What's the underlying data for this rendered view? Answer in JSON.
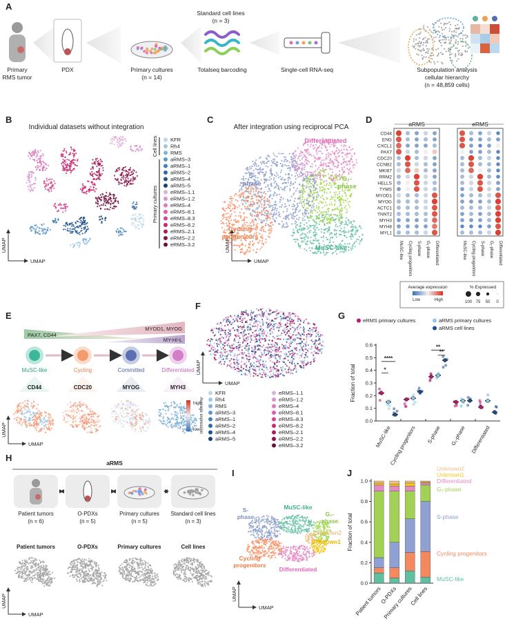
{
  "figure": {
    "panel_letters": [
      "A",
      "B",
      "C",
      "D",
      "E",
      "F",
      "G",
      "H",
      "I",
      "J"
    ],
    "A": {
      "tumor": [
        "Primary",
        "RMS tumor"
      ],
      "pdx": "PDX",
      "primary": [
        "Primary cultures",
        "(n = 14)"
      ],
      "standard": [
        "Standard cell lines",
        "(n = 3)"
      ],
      "barcoding": "Totalseq barcoding",
      "scrnaseq": "Single-cell RNA-seq",
      "analysis": [
        "Subpopulation analysis",
        "cellular hierarchy",
        "(n = 48,859 cells)"
      ]
    },
    "B": {
      "title": "Individual datasets without integration",
      "group_cell_lines": "Cell lines",
      "group_primary": "Primary cultures",
      "umap": "UMAP",
      "samples": [
        {
          "name": "KFR",
          "color": "#b9d6ec"
        },
        {
          "name": "Rh4",
          "color": "#9fc5e4"
        },
        {
          "name": "RMS",
          "color": "#80b1dc"
        },
        {
          "name": "aRMS–3",
          "color": "#5e98cd"
        },
        {
          "name": "aRMS–1",
          "color": "#4281c0"
        },
        {
          "name": "aRMS–2",
          "color": "#2e6bae"
        },
        {
          "name": "aRMS–4",
          "color": "#1f5597"
        },
        {
          "name": "aRMS–5",
          "color": "#17407a"
        },
        {
          "name": "eRMS–1.1",
          "color": "#dcb0da"
        },
        {
          "name": "eRMS–1.2",
          "color": "#d795cf"
        },
        {
          "name": "eRMS–4",
          "color": "#d97cc2"
        },
        {
          "name": "eRMS–8.1",
          "color": "#dd5eb0"
        },
        {
          "name": "eRMS–8.3",
          "color": "#d94391"
        },
        {
          "name": "eRMS–8.2",
          "color": "#c82872"
        },
        {
          "name": "eRMS–2.1",
          "color": "#a91b5b"
        },
        {
          "name": "eRMS–2.2",
          "color": "#8a1349"
        },
        {
          "name": "eRMS–3.2",
          "color": "#6e0c3a"
        }
      ]
    },
    "C": {
      "title": "After integration using reciprocal PCA",
      "umap": "UMAP",
      "differentiated": "Differentiated",
      "sphase": [
        "S-",
        "phase"
      ],
      "g1": [
        "G₁-",
        "phase"
      ],
      "cycling": [
        "Cycling",
        "progenitors"
      ],
      "musc": "MuSC-like"
    },
    "D": {
      "avg_title": "Average expression",
      "low": "Low",
      "high": "High",
      "size_title": "% Expressed",
      "size_ticks": [
        100,
        75,
        50,
        0
      ]
    },
    "E": {
      "pax7": "PAX7, CD44",
      "myod": "MYOD1, MYOG",
      "myh": "MY-H/-L",
      "stages": [
        "MuSC-like",
        "Cycling",
        "Committed",
        "Differentiated"
      ],
      "genes": [
        "CD44",
        "CDC20",
        "MYOG",
        "MYH3"
      ],
      "colorbar_title": "Average expression",
      "high": "high",
      "low": "low",
      "umap": "UMAP"
    },
    "F": {
      "umap": "UMAP"
    },
    "H": {
      "group": "aRMS",
      "boxes": [
        [
          "Patient tumors",
          "(n = 6)"
        ],
        [
          "O-PDXs",
          "(n = 5)"
        ],
        [
          "Primary cultures",
          "(n = 5)"
        ],
        [
          "Standard cell lines",
          "(n = 3)"
        ]
      ],
      "umap_titles": [
        "Patient tumors",
        "O-PDXs",
        "Primary cultures",
        "Cell lines"
      ],
      "umap": "UMAP"
    },
    "I": {
      "sphase": [
        "S-",
        "phase"
      ],
      "musc": "MuSC-like",
      "g1": [
        "G₁-",
        "phase"
      ],
      "unknown2": "Unknown2",
      "unknown1": "Unknown1",
      "cycling": [
        "Cycling",
        "progenitors"
      ],
      "differentiated": "Differentiated",
      "umap": "UMAP"
    }
  },
  "chart_data": [
    {
      "type": "dotplot",
      "groups": [
        "aRMS",
        "eRMS"
      ],
      "genes": [
        "CD44",
        "ENG",
        "CXCL1",
        "PAX7",
        "CDC20",
        "CCNB2",
        "MKI67",
        "RRM2",
        "HELLS",
        "TYMS",
        "MYOD1",
        "MYOG",
        "ACTC1",
        "TNNT2",
        "MYH3",
        "MYH8",
        "MYL1"
      ],
      "clusters": [
        "MuSC-like",
        "Cycling progenitors",
        "S-phase",
        "G₁-phase",
        "Differentiated"
      ],
      "values": [
        [
          0.95,
          0.3,
          0.2,
          0.4,
          0.2,
          0.9,
          0.3,
          0.2,
          0.4,
          0.1
        ],
        [
          0.9,
          0.3,
          0.2,
          0.3,
          0.2,
          0.9,
          0.2,
          0.2,
          0.3,
          0.2
        ],
        [
          0.85,
          0.2,
          0.2,
          0.2,
          0.3,
          0.9,
          0.2,
          0.1,
          0.2,
          0.5
        ],
        [
          0.9,
          0.4,
          0.3,
          0.5,
          0.6,
          0.5,
          0.2,
          0.2,
          0.3,
          0.1
        ],
        [
          0.3,
          0.95,
          0.3,
          0.4,
          0.2,
          0.3,
          0.95,
          0.3,
          0.4,
          0.1
        ],
        [
          0.3,
          0.9,
          0.4,
          0.3,
          0.2,
          0.3,
          0.9,
          0.3,
          0.3,
          0.1
        ],
        [
          0.4,
          0.85,
          0.6,
          0.3,
          0.2,
          0.3,
          0.85,
          0.5,
          0.3,
          0.1
        ],
        [
          0.3,
          0.4,
          0.95,
          0.4,
          0.2,
          0.3,
          0.4,
          0.95,
          0.3,
          0.1
        ],
        [
          0.3,
          0.5,
          0.9,
          0.4,
          0.3,
          0.3,
          0.4,
          0.9,
          0.4,
          0.2
        ],
        [
          0.2,
          0.5,
          0.9,
          0.4,
          0.3,
          0.2,
          0.4,
          0.9,
          0.4,
          0.2
        ],
        [
          0.4,
          0.3,
          0.3,
          0.4,
          0.9,
          0.2,
          0.3,
          0.3,
          0.4,
          0.9
        ],
        [
          0.3,
          0.3,
          0.3,
          0.4,
          0.95,
          0.2,
          0.2,
          0.2,
          0.3,
          0.95
        ],
        [
          0.3,
          0.3,
          0.3,
          0.4,
          0.9,
          0.3,
          0.3,
          0.3,
          0.4,
          0.9
        ],
        [
          0.3,
          0.3,
          0.3,
          0.3,
          0.9,
          0.2,
          0.3,
          0.2,
          0.3,
          0.95
        ],
        [
          0.2,
          0.2,
          0.2,
          0.3,
          0.85,
          0.2,
          0.2,
          0.2,
          0.3,
          0.95
        ],
        [
          0.2,
          0.2,
          0.2,
          0.2,
          0.8,
          0.1,
          0.1,
          0.1,
          0.2,
          0.9
        ],
        [
          0.3,
          0.3,
          0.3,
          0.4,
          0.9,
          0.3,
          0.3,
          0.3,
          0.4,
          0.95
        ]
      ]
    },
    {
      "type": "dot",
      "ylabel": "Fraction of total",
      "categories": [
        "MuSC-like",
        "Cycling progenitors",
        "S-phase",
        "G₁-phase",
        "Differentiated"
      ],
      "series": [
        {
          "name": "eRMS primary cultures",
          "color": "#b8196b",
          "values": [
            0.22,
            0.17,
            0.35,
            0.15,
            0.11
          ]
        },
        {
          "name": "aRMS primary cultures",
          "color": "#8ecae6",
          "values": [
            0.15,
            0.18,
            0.36,
            0.16,
            0.16
          ]
        },
        {
          "name": "aRMS cell lines",
          "color": "#1d4e89",
          "values": [
            0.05,
            0.23,
            0.48,
            0.16,
            0.07
          ]
        }
      ],
      "annotations": [
        "****",
        "*",
        "**",
        "**"
      ],
      "ylim": [
        0,
        0.6
      ],
      "yticks": [
        {
          "value": 0,
          "label": "0.0"
        },
        {
          "value": 0.1,
          "label": "0.1"
        },
        {
          "value": 0.2,
          "label": "0.2"
        },
        {
          "value": 0.3,
          "label": "0.3"
        },
        {
          "value": 0.4,
          "label": "0.4"
        },
        {
          "value": 0.5,
          "label": "0.5"
        },
        {
          "value": 0.6,
          "label": "0.6"
        }
      ]
    },
    {
      "type": "stacked-bar",
      "ylabel": "Fraction of total",
      "categories": [
        "Patient tumors",
        "O-PDXs",
        "Primary cultures",
        "Cell lines"
      ],
      "series": [
        {
          "name": "MuSC-like",
          "color": "#5fbf9f",
          "values": [
            0.1,
            0.05,
            0.12,
            0.06
          ]
        },
        {
          "name": "Cycling progenitors",
          "color": "#f4895f",
          "values": [
            0.05,
            0.1,
            0.18,
            0.25
          ]
        },
        {
          "name": "S-phase",
          "color": "#8fa0d2",
          "values": [
            0.1,
            0.25,
            0.33,
            0.49
          ]
        },
        {
          "name": "G₁-phase",
          "color": "#a3d155",
          "values": [
            0.65,
            0.5,
            0.27,
            0.16
          ]
        },
        {
          "name": "Differentiated",
          "color": "#e48cc6",
          "values": [
            0.06,
            0.05,
            0.05,
            0.02
          ]
        },
        {
          "name": "Unknown1",
          "color": "#f3c81e",
          "values": [
            0.02,
            0.02,
            0.03,
            0.01
          ]
        },
        {
          "name": "Unknown2",
          "color": "#f2be8a",
          "values": [
            0.02,
            0.03,
            0.02,
            0.01
          ]
        }
      ],
      "ylim": [
        0,
        1.0
      ],
      "yticks": [
        {
          "value": 0,
          "label": "0.0"
        },
        {
          "value": 0.2,
          "label": "0.2"
        },
        {
          "value": 0.4,
          "label": "0.4"
        },
        {
          "value": 0.6,
          "label": "0.6"
        },
        {
          "value": 0.8,
          "label": "0.8"
        },
        {
          "value": 1.0,
          "label": "1.0"
        }
      ]
    }
  ]
}
